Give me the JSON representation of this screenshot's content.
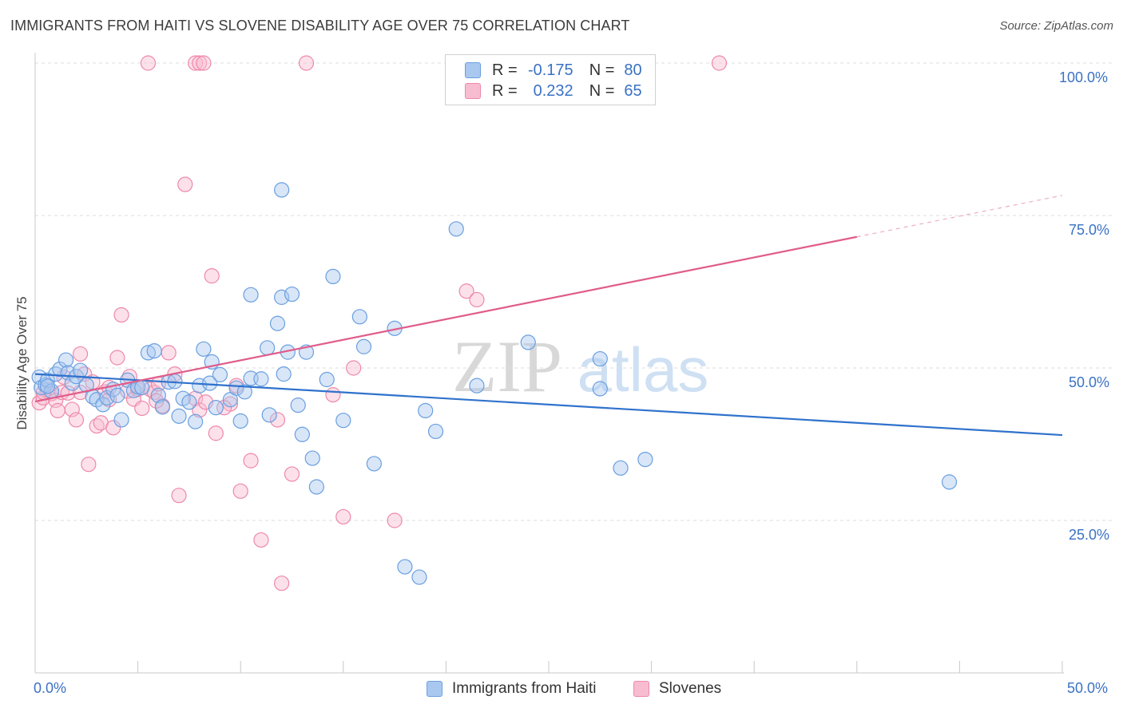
{
  "title": "IMMIGRANTS FROM HAITI VS SLOVENE DISABILITY AGE OVER 75 CORRELATION CHART",
  "source": "Source: ZipAtlas.com",
  "watermark": {
    "zip": "ZIP",
    "atlas": "atlas"
  },
  "legend_top": [
    {
      "r_label": "R =",
      "r_value": "-0.175",
      "n_label": "N =",
      "n_value": "80",
      "color": "#a9c8f0",
      "border": "#6a9fe0"
    },
    {
      "r_label": "R =",
      "r_value": "0.232",
      "n_label": "N =",
      "n_value": "65",
      "color": "#f8bcd0",
      "border": "#ee88aa"
    }
  ],
  "legend_bottom": [
    {
      "label": "Immigrants from Haiti",
      "color": "#a9c8f0",
      "border": "#6a9fe0"
    },
    {
      "label": "Slovenes",
      "color": "#f8bcd0",
      "border": "#ee88aa"
    }
  ],
  "x_tick_labels": {
    "left": "0.0%",
    "right": "50.0%"
  },
  "y_tick_labels": [
    "100.0%",
    "75.0%",
    "50.0%",
    "25.0%"
  ],
  "chart_data": {
    "type": "scatter",
    "title": "IMMIGRANTS FROM HAITI VS SLOVENE DISABILITY AGE OVER 75 CORRELATION CHART",
    "xlabel": "",
    "ylabel": "Disability Age Over 75",
    "xlim": [
      0,
      50
    ],
    "ylim": [
      0,
      100
    ],
    "y_ticks": [
      25,
      50,
      75,
      100
    ],
    "grid": true,
    "legend_position": "bottom",
    "colors": {
      "haiti": "#6a9fe0",
      "haiti_fill": "#a9c8f0",
      "haiti_line": "#2f72cc",
      "slovenes": "#ee88aa",
      "slovenes_fill": "#f8bcd0",
      "slovenes_line": "#e05c8a"
    },
    "series": [
      {
        "name": "Immigrants from Haiti",
        "trend": {
          "x0": 0,
          "y0": 49.0,
          "x1": 50,
          "y1": 39.0,
          "dashed_from": 50
        },
        "points": [
          [
            0.2,
            48.5
          ],
          [
            0.3,
            46.8
          ],
          [
            0.5,
            47.2
          ],
          [
            0.6,
            48.0
          ],
          [
            0.8,
            46.2
          ],
          [
            1.0,
            49.0
          ],
          [
            1.2,
            49.8
          ],
          [
            1.5,
            51.3
          ],
          [
            1.6,
            49.2
          ],
          [
            1.8,
            47.5
          ],
          [
            2.0,
            48.6
          ],
          [
            2.2,
            49.6
          ],
          [
            2.5,
            47.2
          ],
          [
            2.8,
            45.3
          ],
          [
            3.0,
            44.8
          ],
          [
            3.3,
            44.0
          ],
          [
            3.5,
            45.1
          ],
          [
            3.8,
            46.5
          ],
          [
            4.0,
            45.5
          ],
          [
            4.2,
            41.5
          ],
          [
            4.5,
            48.0
          ],
          [
            4.8,
            46.3
          ],
          [
            5.0,
            46.9
          ],
          [
            5.2,
            46.8
          ],
          [
            5.5,
            52.5
          ],
          [
            5.8,
            52.8
          ],
          [
            6.0,
            45.5
          ],
          [
            6.2,
            43.6
          ],
          [
            6.5,
            47.7
          ],
          [
            6.8,
            47.8
          ],
          [
            7.0,
            42.1
          ],
          [
            7.2,
            45.0
          ],
          [
            7.5,
            44.4
          ],
          [
            7.8,
            41.2
          ],
          [
            8.0,
            47.1
          ],
          [
            8.2,
            53.1
          ],
          [
            8.5,
            47.5
          ],
          [
            8.6,
            51.0
          ],
          [
            8.8,
            43.5
          ],
          [
            9.0,
            48.9
          ],
          [
            9.5,
            44.8
          ],
          [
            9.8,
            46.7
          ],
          [
            10.0,
            41.3
          ],
          [
            10.2,
            46.1
          ],
          [
            10.5,
            48.3
          ],
          [
            11.0,
            48.2
          ],
          [
            10.5,
            62.0
          ],
          [
            11.3,
            53.3
          ],
          [
            11.4,
            42.3
          ],
          [
            11.8,
            57.3
          ],
          [
            12.0,
            61.6
          ],
          [
            12.1,
            49.0
          ],
          [
            12.3,
            52.6
          ],
          [
            12.0,
            79.2
          ],
          [
            12.5,
            62.1
          ],
          [
            12.8,
            43.9
          ],
          [
            13.0,
            39.1
          ],
          [
            13.2,
            52.6
          ],
          [
            13.5,
            35.2
          ],
          [
            13.7,
            30.5
          ],
          [
            14.2,
            48.1
          ],
          [
            14.5,
            65.0
          ],
          [
            15.0,
            41.4
          ],
          [
            15.8,
            58.4
          ],
          [
            16.0,
            53.5
          ],
          [
            16.5,
            34.3
          ],
          [
            17.5,
            56.5
          ],
          [
            18.0,
            17.4
          ],
          [
            18.7,
            15.7
          ],
          [
            19.0,
            43.0
          ],
          [
            19.5,
            39.6
          ],
          [
            20.5,
            72.8
          ],
          [
            21.5,
            47.1
          ],
          [
            24.0,
            54.2
          ],
          [
            27.5,
            51.5
          ],
          [
            27.5,
            46.6
          ],
          [
            28.5,
            33.6
          ],
          [
            29.7,
            35.0
          ],
          [
            44.5,
            31.3
          ],
          [
            0.6,
            47.0
          ]
        ]
      },
      {
        "name": "Slovenes",
        "trend": {
          "x0": 0,
          "y0": 44.5,
          "x1": 40,
          "y1": 71.5,
          "dashed_from": 40,
          "dashed_to_x": 50,
          "dashed_to_y": 78.3
        },
        "points": [
          [
            0.2,
            44.3
          ],
          [
            0.4,
            45.1
          ],
          [
            0.6,
            46.4
          ],
          [
            0.8,
            45.8
          ],
          [
            1.0,
            44.7
          ],
          [
            1.1,
            43.0
          ],
          [
            1.3,
            46.0
          ],
          [
            1.6,
            45.9
          ],
          [
            1.8,
            43.2
          ],
          [
            2.0,
            41.5
          ],
          [
            2.2,
            52.3
          ],
          [
            2.4,
            49.0
          ],
          [
            2.6,
            34.2
          ],
          [
            2.8,
            47.7
          ],
          [
            3.0,
            40.5
          ],
          [
            3.2,
            41.0
          ],
          [
            3.4,
            46.1
          ],
          [
            3.6,
            44.8
          ],
          [
            3.8,
            40.2
          ],
          [
            4.0,
            51.7
          ],
          [
            4.2,
            58.7
          ],
          [
            4.5,
            46.2
          ],
          [
            4.6,
            48.6
          ],
          [
            4.8,
            44.9
          ],
          [
            5.0,
            46.5
          ],
          [
            5.2,
            43.4
          ],
          [
            5.6,
            46.5
          ],
          [
            5.8,
            46.0
          ],
          [
            6.0,
            47.4
          ],
          [
            6.2,
            43.8
          ],
          [
            6.5,
            52.5
          ],
          [
            6.8,
            49.0
          ],
          [
            7.0,
            29.1
          ],
          [
            7.3,
            80.1
          ],
          [
            7.8,
            45.0
          ],
          [
            8.0,
            43.1
          ],
          [
            8.3,
            44.4
          ],
          [
            8.6,
            65.1
          ],
          [
            8.8,
            39.3
          ],
          [
            9.5,
            44.1
          ],
          [
            9.8,
            47.1
          ],
          [
            10.0,
            29.8
          ],
          [
            10.5,
            34.8
          ],
          [
            11.0,
            21.8
          ],
          [
            11.8,
            41.5
          ],
          [
            12.0,
            14.7
          ],
          [
            12.5,
            32.6
          ],
          [
            14.5,
            45.6
          ],
          [
            15.0,
            25.6
          ],
          [
            15.5,
            50.0
          ],
          [
            17.5,
            25.0
          ],
          [
            21.0,
            62.6
          ],
          [
            21.5,
            61.2
          ],
          [
            5.5,
            100
          ],
          [
            7.8,
            100
          ],
          [
            8.0,
            100
          ],
          [
            8.2,
            100
          ],
          [
            13.2,
            100
          ],
          [
            33.3,
            100
          ],
          [
            0.4,
            46.0
          ],
          [
            1.4,
            48.5
          ],
          [
            2.2,
            46.0
          ],
          [
            3.6,
            46.8
          ],
          [
            5.9,
            44.6
          ],
          [
            9.2,
            43.5
          ]
        ]
      }
    ]
  }
}
